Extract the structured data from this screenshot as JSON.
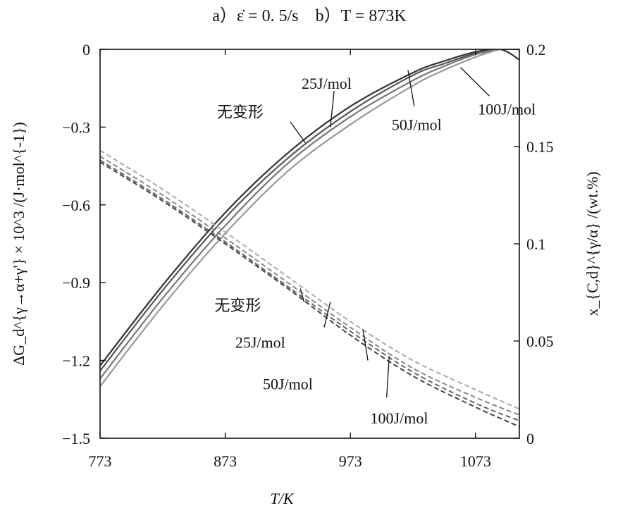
{
  "chart_data": {
    "type": "line",
    "title": "a）ε̇ = 0. 5/s　b）T = 873K",
    "xlabel": "T/K",
    "ylabel": "ΔG_d^{γ→α+γ'} × 10^3 /(J·mol^{-1})",
    "y2label": "x_{C,d}^{γ/α} /(wt.%)",
    "xlim": [
      773,
      1108
    ],
    "ylim": [
      -1.5,
      0
    ],
    "y2lim": [
      0,
      0.2
    ],
    "xticks": [
      773,
      873,
      973,
      1073
    ],
    "xtick_labels": [
      "773",
      "873",
      "973",
      "1073"
    ],
    "yticks": [
      0,
      -0.3,
      -0.6,
      -0.9,
      -1.2,
      -1.5
    ],
    "ytick_labels": [
      "0",
      "−0.3",
      "−0.6",
      "−0.9",
      "−1.2",
      "−1.5"
    ],
    "y2ticks": [
      0.2,
      0.15,
      0.1,
      0.05,
      0
    ],
    "y2tick_labels": [
      "0.2",
      "0.15",
      "0.1",
      "0.05",
      "0"
    ],
    "grid": false,
    "legend": "none",
    "series": [
      {
        "axis": "left",
        "style": "solid",
        "color": "#333333",
        "x": [
          773,
          823,
          873,
          923,
          973,
          1023,
          1048,
          1073,
          1093,
          1108
        ],
        "y": [
          -1.22,
          -0.91,
          -0.63,
          -0.4,
          -0.22,
          -0.09,
          -0.045,
          -0.01,
          0,
          -0.04
        ]
      },
      {
        "axis": "left",
        "style": "solid",
        "color": "#555555",
        "x": [
          773,
          823,
          873,
          923,
          973,
          1023,
          1048,
          1073,
          1093,
          1108
        ],
        "y": [
          -1.24,
          -0.93,
          -0.65,
          -0.42,
          -0.24,
          -0.1,
          -0.055,
          -0.015,
          0,
          0
        ]
      },
      {
        "axis": "left",
        "style": "solid",
        "color": "#777777",
        "x": [
          773,
          823,
          873,
          923,
          973,
          1023,
          1048,
          1073,
          1093,
          1108
        ],
        "y": [
          -1.27,
          -0.96,
          -0.68,
          -0.44,
          -0.26,
          -0.12,
          -0.065,
          -0.02,
          0,
          0
        ]
      },
      {
        "axis": "left",
        "style": "solid",
        "color": "#999999",
        "x": [
          773,
          823,
          873,
          923,
          973,
          1023,
          1048,
          1073,
          1093,
          1108
        ],
        "y": [
          -1.3,
          -0.99,
          -0.71,
          -0.47,
          -0.29,
          -0.14,
          -0.08,
          -0.03,
          0,
          0
        ]
      },
      {
        "axis": "right",
        "style": "dashed",
        "color": "#444444",
        "x": [
          773,
          823,
          873,
          923,
          973,
          1023,
          1073,
          1108
        ],
        "y": [
          0.142,
          0.122,
          0.1,
          0.077,
          0.053,
          0.032,
          0.016,
          0.006
        ]
      },
      {
        "axis": "right",
        "style": "dashed",
        "color": "#666666",
        "x": [
          773,
          823,
          873,
          923,
          973,
          1023,
          1073,
          1108
        ],
        "y": [
          0.143,
          0.123,
          0.101,
          0.078,
          0.055,
          0.034,
          0.018,
          0.009
        ]
      },
      {
        "axis": "right",
        "style": "dashed",
        "color": "#888888",
        "x": [
          773,
          823,
          873,
          923,
          973,
          1023,
          1073,
          1108
        ],
        "y": [
          0.145,
          0.125,
          0.103,
          0.08,
          0.057,
          0.036,
          0.021,
          0.012
        ]
      },
      {
        "axis": "right",
        "style": "dashed",
        "color": "#aaaaaa",
        "x": [
          773,
          823,
          873,
          923,
          973,
          1023,
          1073,
          1108
        ],
        "y": [
          0.148,
          0.128,
          0.106,
          0.083,
          0.06,
          0.04,
          0.025,
          0.015
        ]
      }
    ],
    "annotations": [
      {
        "text": "25J/mol",
        "x": 954,
        "y": -0.13,
        "axis": "left",
        "line": [
          [
            960,
            -0.16
          ],
          [
            957,
            -0.3
          ]
        ]
      },
      {
        "text": "无变形",
        "x": 885,
        "y": -0.24,
        "axis": "left",
        "line": [
          [
            925,
            -0.28
          ],
          [
            937,
            -0.36
          ]
        ]
      },
      {
        "text": "50J/mol",
        "x": 1026,
        "y": -0.29,
        "axis": "left",
        "line": [
          [
            1024,
            -0.22
          ],
          [
            1019,
            -0.08
          ]
        ]
      },
      {
        "text": "100J/mol",
        "x": 1098,
        "y": -0.23,
        "axis": "left",
        "line": [
          [
            1084,
            -0.18
          ],
          [
            1061,
            -0.07
          ]
        ]
      },
      {
        "text": "无变形",
        "x": 883,
        "y": 0.0685,
        "axis": "right",
        "line": [
          [
            936,
            0.07
          ],
          [
            933,
            0.077
          ]
        ]
      },
      {
        "text": "25J/mol",
        "x": 901,
        "y": 0.0495,
        "axis": "right",
        "line": [
          [
            952,
            0.057
          ],
          [
            957,
            0.07
          ]
        ]
      },
      {
        "text": "50J/mol",
        "x": 923,
        "y": 0.028,
        "axis": "right",
        "line": [
          [
            987,
            0.04
          ],
          [
            983,
            0.056
          ]
        ]
      },
      {
        "text": "100J/mol",
        "x": 1012,
        "y": 0.0105,
        "axis": "right",
        "line": [
          [
            1002,
            0.021
          ],
          [
            1004,
            0.042
          ]
        ]
      }
    ]
  }
}
